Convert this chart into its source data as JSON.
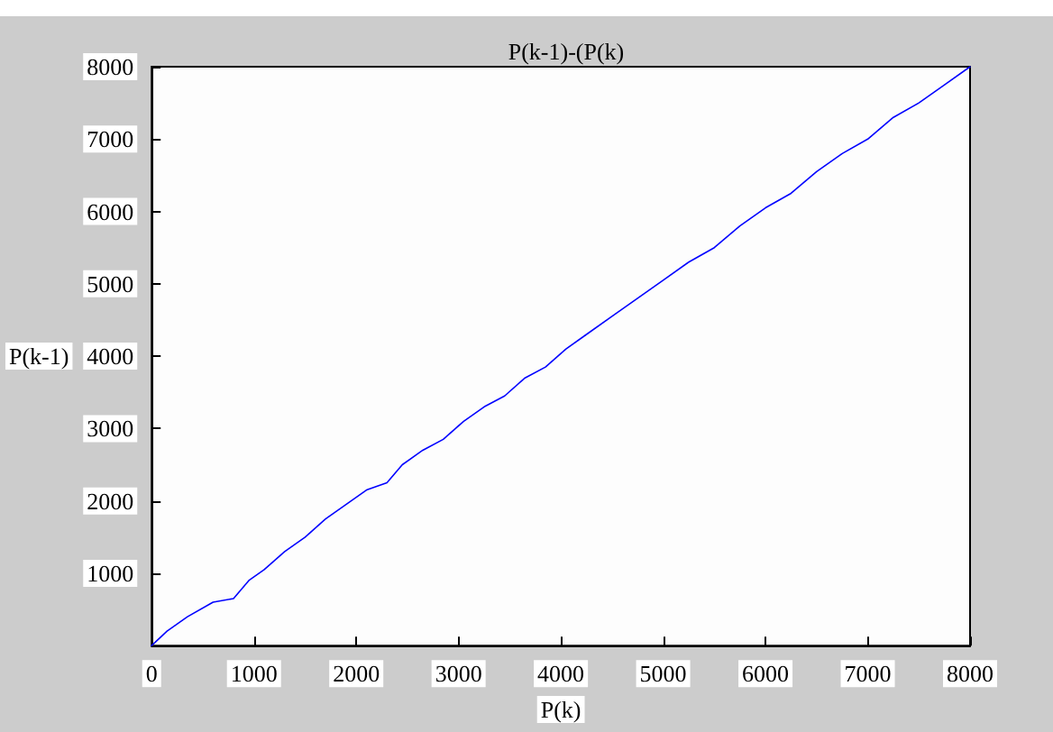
{
  "chart_data": {
    "type": "line",
    "title": "P(k-1)-(P(k)",
    "xlabel": "P(k)",
    "ylabel": "P(k-1)",
    "xlim": [
      0,
      8000
    ],
    "ylim": [
      0,
      8000
    ],
    "xticks": [
      0,
      1000,
      2000,
      3000,
      4000,
      5000,
      6000,
      7000,
      8000
    ],
    "yticks": [
      {
        "value": 0,
        "label": null
      },
      1000,
      2000,
      3000,
      4000,
      5000,
      6000,
      7000,
      8000
    ],
    "grid": false,
    "marker": "none",
    "line_style": "solid",
    "series": [
      {
        "color": "#0000ff",
        "x": [
          0,
          150,
          350,
          600,
          800,
          950,
          1100,
          1300,
          1500,
          1700,
          1900,
          2100,
          2300,
          2450,
          2650,
          2850,
          3050,
          3250,
          3450,
          3650,
          3850,
          4050,
          4250,
          4500,
          4750,
          5000,
          5250,
          5500,
          5750,
          6000,
          6250,
          6500,
          6750,
          7000,
          7250,
          7500,
          7750,
          8000
        ],
        "values": [
          0,
          200,
          400,
          600,
          650,
          900,
          1050,
          1300,
          1500,
          1750,
          1950,
          2150,
          2250,
          2500,
          2700,
          2850,
          3100,
          3300,
          3450,
          3700,
          3850,
          4100,
          4300,
          4550,
          4800,
          5050,
          5300,
          5500,
          5800,
          6050,
          6250,
          6550,
          6800,
          7000,
          7300,
          7500,
          7750,
          8000
        ]
      }
    ]
  }
}
